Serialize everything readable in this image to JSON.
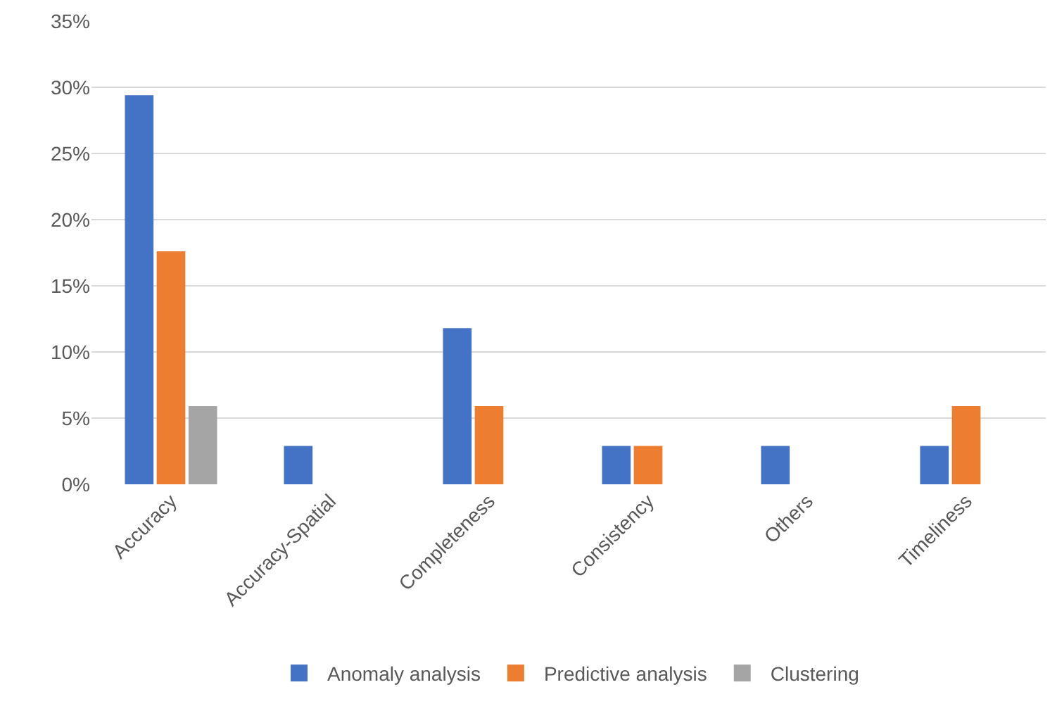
{
  "chart_data": {
    "type": "bar",
    "categories": [
      "Accuracy",
      "Accuracy-Spatial",
      "Completeness",
      "Consistency",
      "Others",
      "Timeliness"
    ],
    "series": [
      {
        "name": "Anomaly analysis",
        "color": "#4472c4",
        "values": [
          29.4,
          2.9,
          11.8,
          2.9,
          2.9,
          2.9
        ]
      },
      {
        "name": "Predictive analysis",
        "color": "#ed7d31",
        "values": [
          17.6,
          null,
          5.9,
          2.9,
          null,
          5.9
        ]
      },
      {
        "name": "Clustering",
        "color": "#a5a5a5",
        "values": [
          5.9,
          null,
          null,
          null,
          null,
          null
        ]
      }
    ],
    "ylim": [
      0,
      35
    ],
    "yticks": [
      {
        "value": 0,
        "label": "0%"
      },
      {
        "value": 5,
        "label": "5%"
      },
      {
        "value": 10,
        "label": "10%"
      },
      {
        "value": 15,
        "label": "15%"
      },
      {
        "value": 20,
        "label": "20%"
      },
      {
        "value": 25,
        "label": "25%"
      },
      {
        "value": 30,
        "label": "30%"
      },
      {
        "value": 35,
        "label": "35%"
      }
    ],
    "grid": "y",
    "legend": "bottom"
  }
}
